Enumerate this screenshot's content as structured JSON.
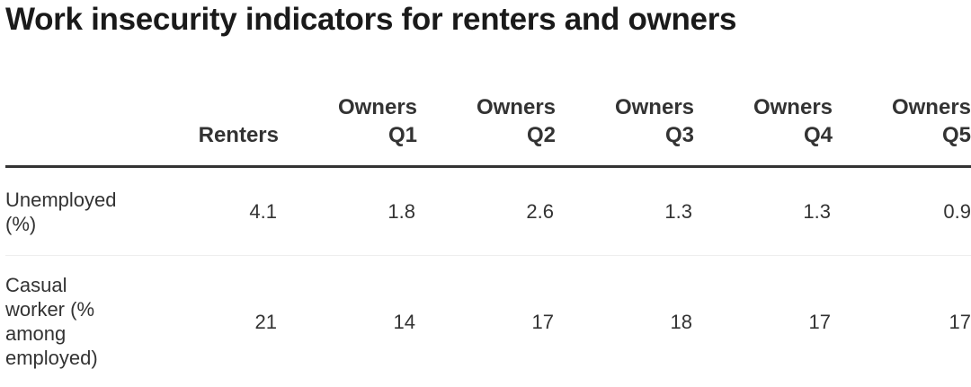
{
  "chart_data": {
    "type": "table",
    "title": "Work insecurity indicators for renters and owners",
    "columns": [
      "",
      "Renters",
      "Owners Q1",
      "Owners Q2",
      "Owners Q3",
      "Owners Q4",
      "Owners Q5"
    ],
    "header": {
      "c1": [
        "Renters"
      ],
      "c2": [
        "Owners",
        "Q1"
      ],
      "c3": [
        "Owners",
        "Q2"
      ],
      "c4": [
        "Owners",
        "Q3"
      ],
      "c5": [
        "Owners",
        "Q4"
      ],
      "c6": [
        "Owners",
        "Q5"
      ]
    },
    "rows": [
      {
        "label": "Unemployed (%)",
        "label_lines": [
          "Unemployed",
          "(%)"
        ],
        "values": [
          "4.1",
          "1.8",
          "2.6",
          "1.3",
          "1.3",
          "0.9"
        ]
      },
      {
        "label": "Casual worker (% among employed)",
        "label_lines": [
          "Casual",
          "worker (%",
          "among",
          "employed)"
        ],
        "values": [
          "21",
          "14",
          "17",
          "18",
          "17",
          "17"
        ]
      }
    ]
  }
}
